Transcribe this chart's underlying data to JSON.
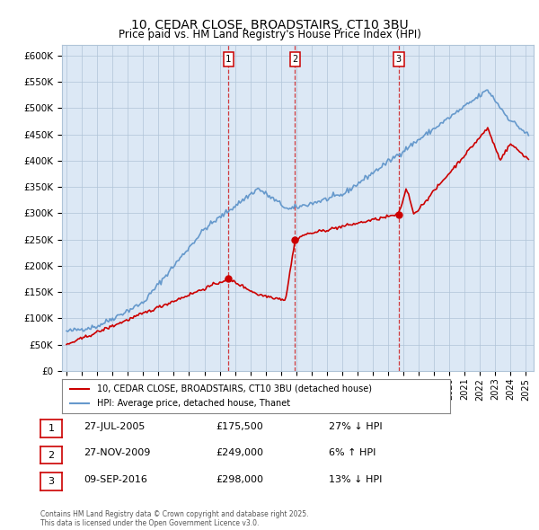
{
  "title": "10, CEDAR CLOSE, BROADSTAIRS, CT10 3BU",
  "subtitle": "Price paid vs. HM Land Registry's House Price Index (HPI)",
  "legend_line1": "10, CEDAR CLOSE, BROADSTAIRS, CT10 3BU (detached house)",
  "legend_line2": "HPI: Average price, detached house, Thanet",
  "sales": [
    {
      "num": 1,
      "date": "27-JUL-2005",
      "price": 175500,
      "hpi_rel": "27% ↓ HPI",
      "year": 2005.57
    },
    {
      "num": 2,
      "date": "27-NOV-2009",
      "price": 249000,
      "hpi_rel": "6% ↑ HPI",
      "year": 2009.92
    },
    {
      "num": 3,
      "date": "09-SEP-2016",
      "price": 298000,
      "hpi_rel": "13% ↓ HPI",
      "year": 2016.69
    }
  ],
  "ylim": [
    0,
    620000
  ],
  "xlim": [
    1994.7,
    2025.5
  ],
  "red_color": "#cc0000",
  "blue_color": "#6699cc",
  "bg_plot": "#dce8f5",
  "background_color": "#ffffff",
  "grid_color": "#b0c4d8",
  "footnote": "Contains HM Land Registry data © Crown copyright and database right 2025.\nThis data is licensed under the Open Government Licence v3.0."
}
